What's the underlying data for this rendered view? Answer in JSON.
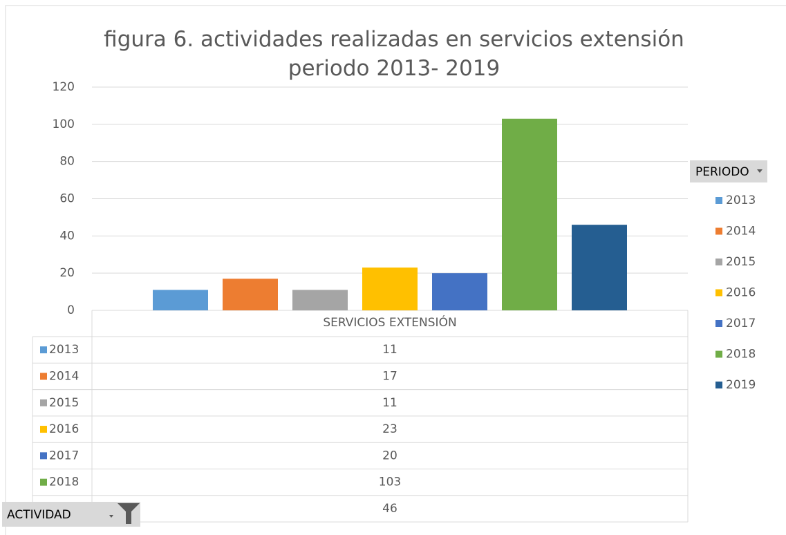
{
  "chart_data": {
    "type": "bar",
    "title": "figura 6. actividades realizadas en servicios extensión periodo 2013- 2019",
    "categories": [
      "SERVICIOS EXTENSIÓN"
    ],
    "series": [
      {
        "name": "2013",
        "color": "#5b9bd5",
        "values": [
          11
        ]
      },
      {
        "name": "2014",
        "color": "#ed7d31",
        "values": [
          17
        ]
      },
      {
        "name": "2015",
        "color": "#a5a5a5",
        "values": [
          11
        ]
      },
      {
        "name": "2016",
        "color": "#ffc000",
        "values": [
          23
        ]
      },
      {
        "name": "2017",
        "color": "#4472c4",
        "values": [
          20
        ]
      },
      {
        "name": "2018",
        "color": "#70ad47",
        "values": [
          103
        ]
      },
      {
        "name": "2019",
        "color": "#255e91",
        "values": [
          46
        ]
      }
    ],
    "ylim": [
      0,
      120
    ],
    "yticks": [
      0,
      20,
      40,
      60,
      80,
      100,
      120
    ],
    "grid": true,
    "legend_title": "PERIODO",
    "legend_position": "right",
    "filter_label": "ACTIVIDAD"
  }
}
